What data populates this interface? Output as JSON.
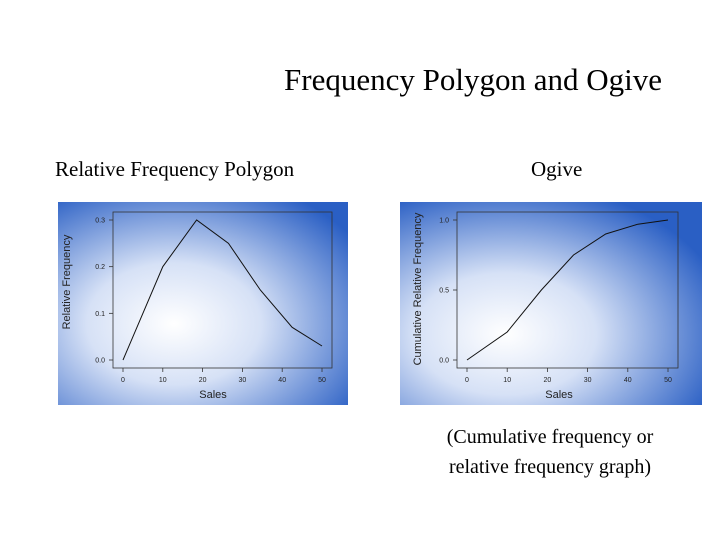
{
  "slide": {
    "title": "Frequency Polygon and Ogive",
    "caption_lines": [
      "(Cumulative frequency or",
      "relative frequency graph)"
    ]
  },
  "colors": {
    "panel_edge": "#2a5fc4",
    "panel_center": "#ffffff",
    "line": "#111111",
    "frame": "#333333"
  },
  "chart_data": [
    {
      "type": "line",
      "title": "Relative Frequency Polygon",
      "xlabel": "Sales",
      "ylabel": "Relative Frequency",
      "xlim": [
        0,
        50
      ],
      "ylim": [
        0,
        0.3
      ],
      "x_ticks": [
        "0",
        "10",
        "20",
        "30",
        "40",
        "50"
      ],
      "y_ticks": [
        "0.0",
        "0.1",
        "0.2",
        "0.3"
      ],
      "y_tick_values": [
        0,
        0.1,
        0.2,
        0.3
      ],
      "series": [
        {
          "x": [
            0,
            10,
            18.5,
            26.5,
            34.5,
            42.5,
            50
          ],
          "y": [
            0.0,
            0.2,
            0.3,
            0.25,
            0.15,
            0.07,
            0.03
          ]
        }
      ],
      "grid": false,
      "legend": "none"
    },
    {
      "type": "line",
      "title": "Ogive",
      "xlabel": "Sales",
      "ylabel": "Cumulative Relative Frequency",
      "xlim": [
        0,
        50
      ],
      "ylim": [
        0,
        1.0
      ],
      "x_ticks": [
        "0",
        "10",
        "20",
        "30",
        "40",
        "50"
      ],
      "y_ticks": [
        "0.0",
        "0.5",
        "1.0"
      ],
      "y_tick_values": [
        0,
        0.5,
        1.0
      ],
      "series": [
        {
          "x": [
            0,
            10,
            18.5,
            26.5,
            34.5,
            42.5,
            50
          ],
          "y": [
            0.0,
            0.2,
            0.5,
            0.75,
            0.9,
            0.97,
            1.0
          ]
        }
      ],
      "grid": false,
      "legend": "none"
    }
  ]
}
